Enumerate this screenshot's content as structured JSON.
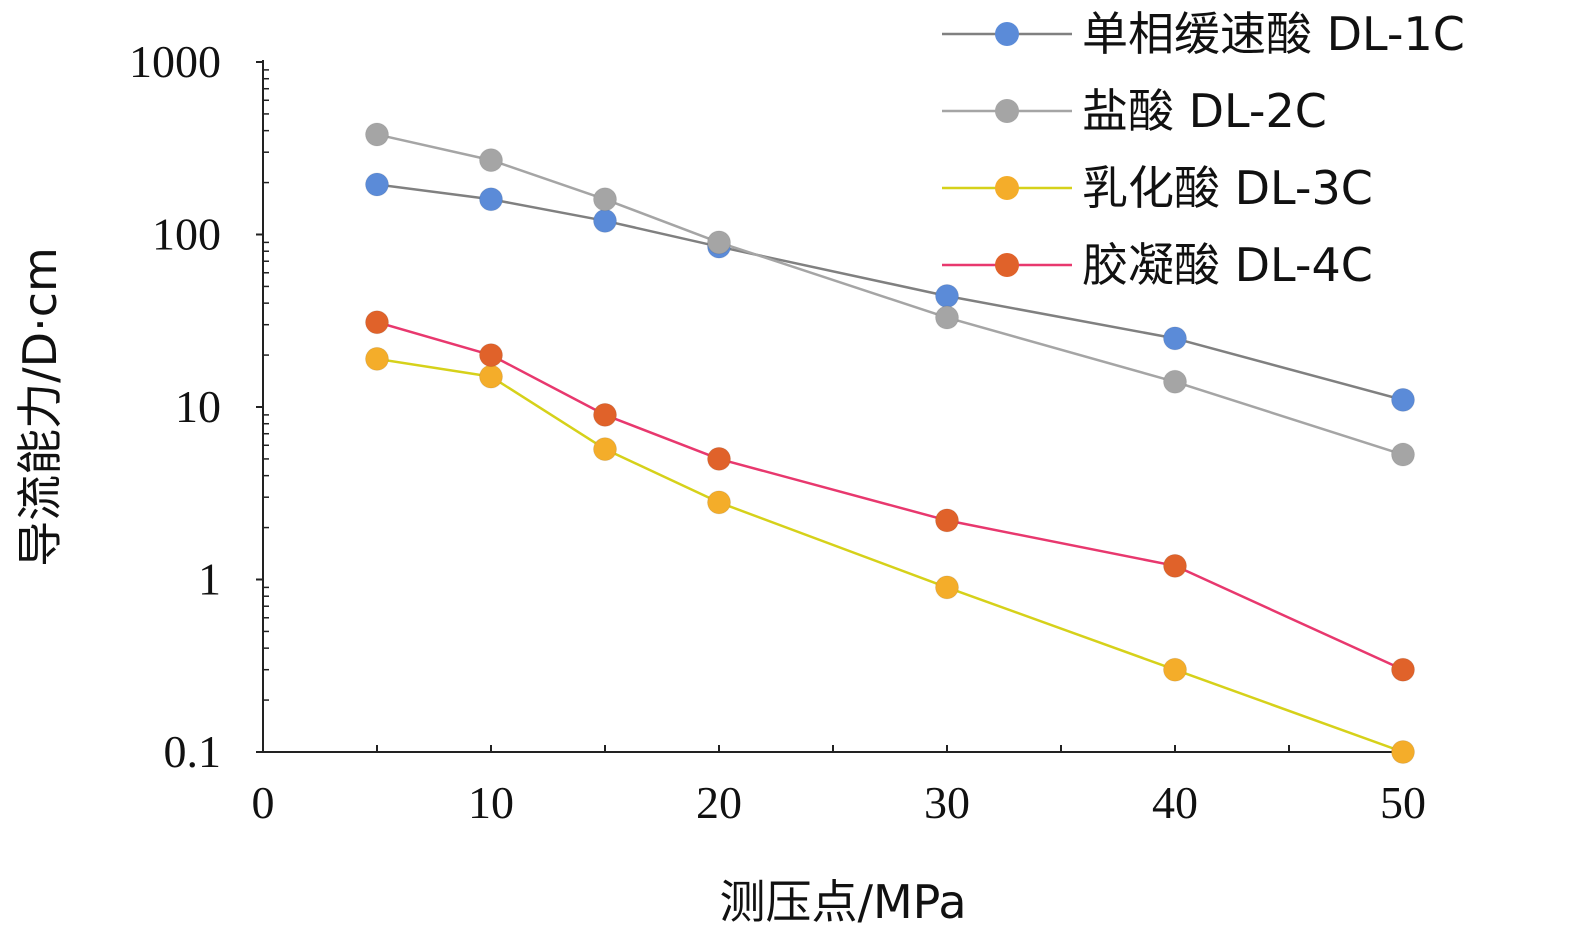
{
  "chart_data": {
    "type": "line",
    "title": "",
    "xlabel": "测压点/MPa",
    "ylabel": "导流能力/D·cm",
    "xlim": [
      0,
      50
    ],
    "ylim": [
      0.1,
      1000
    ],
    "yscale": "log",
    "x_ticks": [
      0,
      10,
      20,
      30,
      40,
      50
    ],
    "x_tick_labels": [
      "0",
      "10",
      "20",
      "30",
      "40",
      "50"
    ],
    "y_ticks": [
      0.1,
      1,
      10,
      100,
      1000
    ],
    "y_tick_labels": [
      "0.1",
      "1",
      "10",
      "100",
      "1000"
    ],
    "grid": false,
    "legend_position": "top-right",
    "x": [
      5,
      10,
      15,
      20,
      30,
      40,
      50
    ],
    "series": [
      {
        "name": "单相缓速酸 DL-1C",
        "marker_color": "#5b8bd8",
        "line_color": "#808080",
        "values": [
          195,
          160,
          120,
          85,
          44,
          25,
          11
        ]
      },
      {
        "name": "盐酸 DL-2C",
        "marker_color": "#a5a5a5",
        "line_color": "#a5a5a5",
        "values": [
          380,
          270,
          160,
          90,
          33,
          14,
          5.3
        ]
      },
      {
        "name": "乳化酸 DL-3C",
        "marker_color": "#f4ad2a",
        "line_color": "#d6d11a",
        "values": [
          19,
          15,
          5.7,
          2.8,
          0.9,
          0.3,
          0.1
        ]
      },
      {
        "name": "胶凝酸 DL-4C",
        "marker_color": "#e0622a",
        "line_color": "#e8386e",
        "values": [
          31,
          20,
          9,
          5,
          2.2,
          1.2,
          0.3
        ]
      }
    ]
  }
}
